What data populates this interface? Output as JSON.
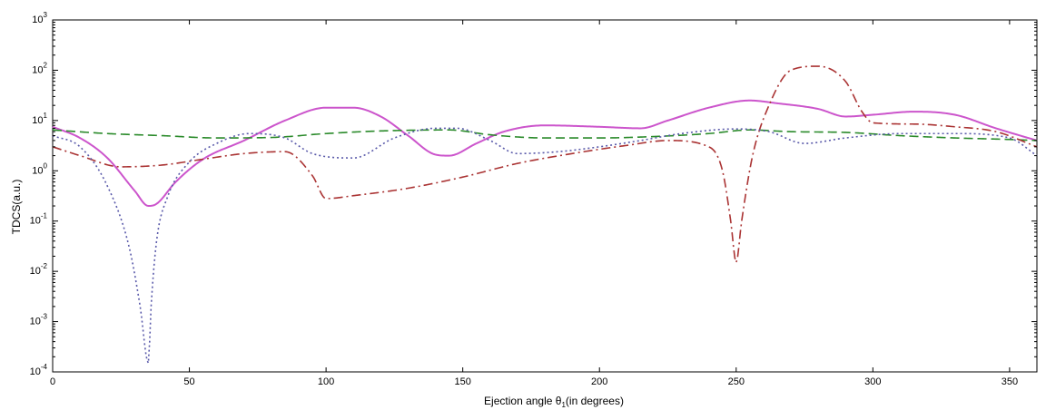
{
  "chart_data": {
    "type": "line",
    "title": "",
    "xlabel": "Ejection angle θ",
    "xlabel_sub": "1",
    "xlabel_suffix": "(in degrees)",
    "ylabel": "TDCS(a.u.)",
    "xlim": [
      0,
      360
    ],
    "ylim": [
      0.0001,
      1000
    ],
    "yscale": "log",
    "grid": false,
    "xticks": [
      0,
      50,
      100,
      150,
      200,
      250,
      300,
      350
    ],
    "yticks": [
      {
        "exp": "-4",
        "value": 0.0001
      },
      {
        "exp": "-3",
        "value": 0.001
      },
      {
        "exp": "-2",
        "value": 0.01
      },
      {
        "exp": "-1",
        "value": 0.1
      },
      {
        "exp": "0",
        "value": 1
      },
      {
        "exp": "1",
        "value": 10
      },
      {
        "exp": "2",
        "value": 100
      },
      {
        "exp": "3",
        "value": 1000
      }
    ],
    "series": [
      {
        "style": "solid",
        "color": "#cc55cc",
        "x": [
          0,
          10,
          20,
          30,
          35,
          38,
          45,
          55,
          70,
          85,
          100,
          110,
          120,
          130,
          140,
          145,
          155,
          165,
          180,
          200,
          215,
          225,
          240,
          255,
          265,
          280,
          290,
          300,
          315,
          330,
          345,
          360
        ],
        "y": [
          7.5,
          4.5,
          1.8,
          0.4,
          0.2,
          0.22,
          0.6,
          1.7,
          4,
          10,
          18,
          18,
          12,
          5,
          2.1,
          2.0,
          3.5,
          6,
          8,
          7.5,
          7,
          10,
          18,
          25,
          22,
          17,
          12,
          13,
          15,
          13,
          7,
          4
        ]
      },
      {
        "style": "dashed",
        "color": "#2a8a2a",
        "x": [
          0,
          20,
          40,
          60,
          80,
          100,
          120,
          145,
          160,
          180,
          200,
          220,
          240,
          255,
          270,
          290,
          310,
          330,
          350,
          360
        ],
        "y": [
          6.5,
          5.5,
          5,
          4.5,
          4.6,
          5.5,
          6.2,
          6.5,
          5.2,
          4.5,
          4.5,
          4.8,
          5.5,
          6.5,
          6,
          5.8,
          5,
          4.5,
          4.2,
          4
        ]
      },
      {
        "style": "dashdot",
        "color": "#aa3333",
        "x": [
          0,
          10,
          25,
          40,
          55,
          70,
          85,
          95,
          100,
          110,
          130,
          150,
          170,
          190,
          210,
          225,
          240,
          245,
          248,
          250,
          252,
          256,
          262,
          270,
          280,
          290,
          296,
          300,
          315,
          330,
          345,
          360
        ],
        "y": [
          3,
          2,
          1.2,
          1.3,
          1.7,
          2.2,
          2.4,
          0.8,
          0.28,
          0.32,
          0.45,
          0.75,
          1.4,
          2.2,
          3.2,
          4,
          3,
          1,
          0.1,
          0.015,
          0.1,
          2,
          20,
          100,
          120,
          60,
          15,
          9,
          8.5,
          7.5,
          6,
          3
        ]
      },
      {
        "style": "dotted",
        "color": "#5a5aaa",
        "x": [
          0,
          10,
          20,
          28,
          32,
          35,
          36,
          38,
          42,
          50,
          60,
          72,
          85,
          95,
          110,
          125,
          140,
          148,
          160,
          170,
          185,
          200,
          215,
          230,
          250,
          262,
          275,
          290,
          310,
          330,
          350,
          360
        ],
        "y": [
          5,
          3,
          0.5,
          0.03,
          0.002,
          0.00015,
          0.002,
          0.04,
          0.3,
          1.5,
          3.5,
          5.5,
          4.5,
          2.2,
          1.8,
          4.5,
          7,
          7,
          4,
          2.2,
          2.4,
          3,
          4,
          5.5,
          6.8,
          6,
          3.5,
          4.5,
          5.5,
          5.5,
          4.5,
          2
        ]
      }
    ]
  }
}
